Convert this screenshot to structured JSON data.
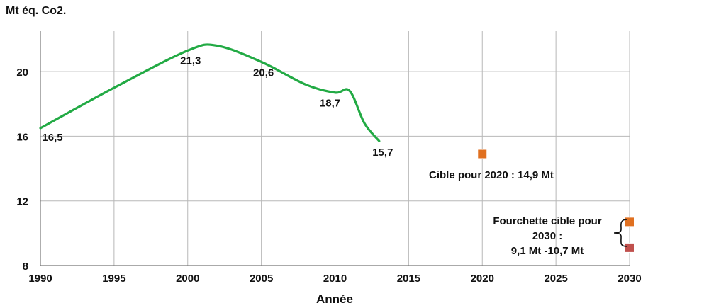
{
  "chart_data": {
    "type": "line",
    "ylabel": "Mt éq. Co2.",
    "xlabel": "Année",
    "xlim": [
      1990,
      2030
    ],
    "ylim": [
      8,
      22.5
    ],
    "x_ticks": [
      1990,
      1995,
      2000,
      2005,
      2010,
      2015,
      2020,
      2025,
      2030
    ],
    "y_ticks": [
      8,
      12,
      16,
      20
    ],
    "grid": true,
    "series": [
      {
        "color": "#22aa44",
        "x": [
          1990,
          1995,
          2000,
          2002,
          2005,
          2008,
          2010,
          2011,
          2012,
          2013
        ],
        "y": [
          16.5,
          19.0,
          21.3,
          21.6,
          20.6,
          19.2,
          18.7,
          18.8,
          16.8,
          15.7
        ]
      }
    ],
    "data_labels": [
      {
        "x": 1990,
        "y": 16.5,
        "text": "16,5"
      },
      {
        "x": 2000,
        "y": 21.3,
        "text": "21,3"
      },
      {
        "x": 2005,
        "y": 20.6,
        "text": "20,6"
      },
      {
        "x": 2010,
        "y": 18.7,
        "text": "18,7"
      },
      {
        "x": 2013,
        "y": 15.7,
        "text": "15,7"
      }
    ],
    "targets": [
      {
        "x": 2020,
        "y": 14.9,
        "color": "#e07020"
      },
      {
        "x": 2030,
        "y": 10.7,
        "color": "#e07020"
      },
      {
        "x": 2030,
        "y": 9.1,
        "color": "#c0504d"
      }
    ],
    "annotations": {
      "target_2020": "Cible pour 2020 : 14,9 Mt",
      "range_2030_line1": "Fourchette cible pour",
      "range_2030_line2": "2030 :",
      "range_2030_line3": "9,1 Mt -10,7 Mt"
    }
  }
}
